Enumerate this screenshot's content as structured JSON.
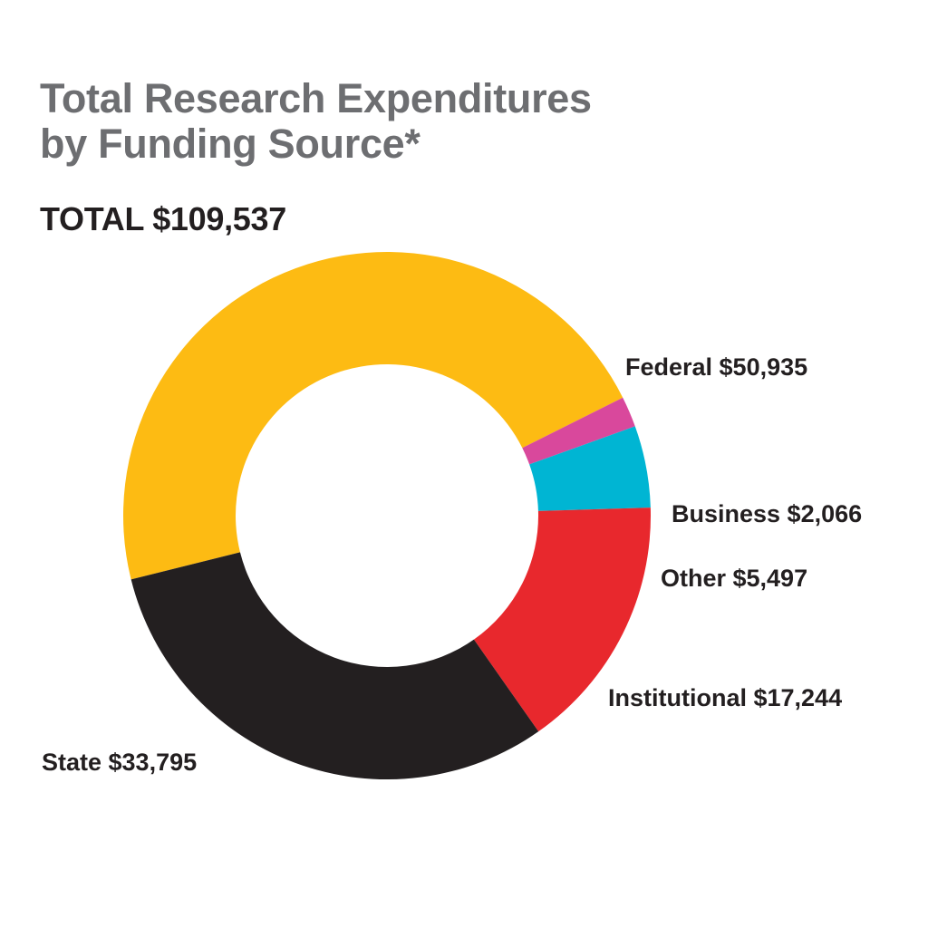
{
  "chart_data": {
    "type": "pie",
    "variant": "donut",
    "title_line1": "Total Research Expenditures",
    "title_line2": "by Funding Source*",
    "total_label": "TOTAL $109,537",
    "total": 109537,
    "slices": [
      {
        "name": "Federal",
        "value": 50935,
        "label": "Federal $50,935",
        "color": "#fdbb13"
      },
      {
        "name": "Business",
        "value": 2066,
        "label": "Business $2,066",
        "color": "#d9489c"
      },
      {
        "name": "Other",
        "value": 5497,
        "label": "Other $5,497",
        "color": "#00b5d3"
      },
      {
        "name": "Institutional",
        "value": 17244,
        "label": "Institutional $17,244",
        "color": "#e8282d"
      },
      {
        "name": "State",
        "value": 33795,
        "label": "State $33,795",
        "color": "#231f20"
      }
    ],
    "legend": "none"
  }
}
